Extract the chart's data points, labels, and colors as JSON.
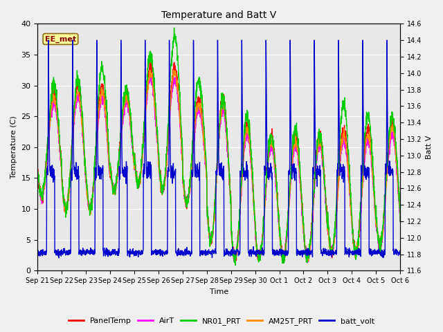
{
  "title": "Temperature and Batt V",
  "xlabel": "Time",
  "ylabel_left": "Temperature (C)",
  "ylabel_right": "Batt V",
  "annotation_text": "EE_met",
  "annotation_color": "#8B0000",
  "annotation_bg": "#FFFF99",
  "annotation_border": "#8B6914",
  "ylim_left": [
    0,
    40
  ],
  "ylim_right": [
    11.6,
    14.6
  ],
  "plot_bg_color": "#E8E8E8",
  "fig_bg_color": "#F0F0F0",
  "legend_entries": [
    "PanelTemp",
    "AirT",
    "NR01_PRT",
    "AM25T_PRT",
    "batt_volt"
  ],
  "legend_colors": [
    "#FF0000",
    "#FF00FF",
    "#00CC00",
    "#FF8C00",
    "#0000CC"
  ],
  "xtick_labels": [
    "Sep 21",
    "Sep 22",
    "Sep 23",
    "Sep 24",
    "Sep 25",
    "Sep 26",
    "Sep 27",
    "Sep 28",
    "Sep 29",
    "Sep 30",
    "Oct 1",
    "Oct 2",
    "Oct 3",
    "Oct 4",
    "Oct 5",
    "Oct 6"
  ],
  "num_days": 15,
  "pts_per_day": 144,
  "day_maxes": [
    29,
    30,
    30,
    29,
    33,
    33,
    28,
    28,
    24,
    22,
    22,
    22,
    23,
    23,
    24
  ],
  "day_mins": [
    12,
    10,
    10,
    13,
    14,
    13,
    11,
    5,
    2,
    2,
    2,
    2,
    3,
    3,
    4
  ],
  "nr01_extra": [
    1,
    1,
    3,
    0,
    2,
    5,
    3,
    0,
    1,
    0,
    1,
    0,
    4,
    2,
    1
  ],
  "batt_spike_times": [
    0.42,
    1.42,
    2.42,
    3.38,
    4.38,
    5.38,
    6.38,
    7.42,
    8.42,
    9.38,
    10.38,
    11.38,
    12.38,
    13.38,
    14.38
  ],
  "batt_spike_val": 14.42,
  "batt_base_day": 12.8,
  "batt_base_night": 11.8
}
